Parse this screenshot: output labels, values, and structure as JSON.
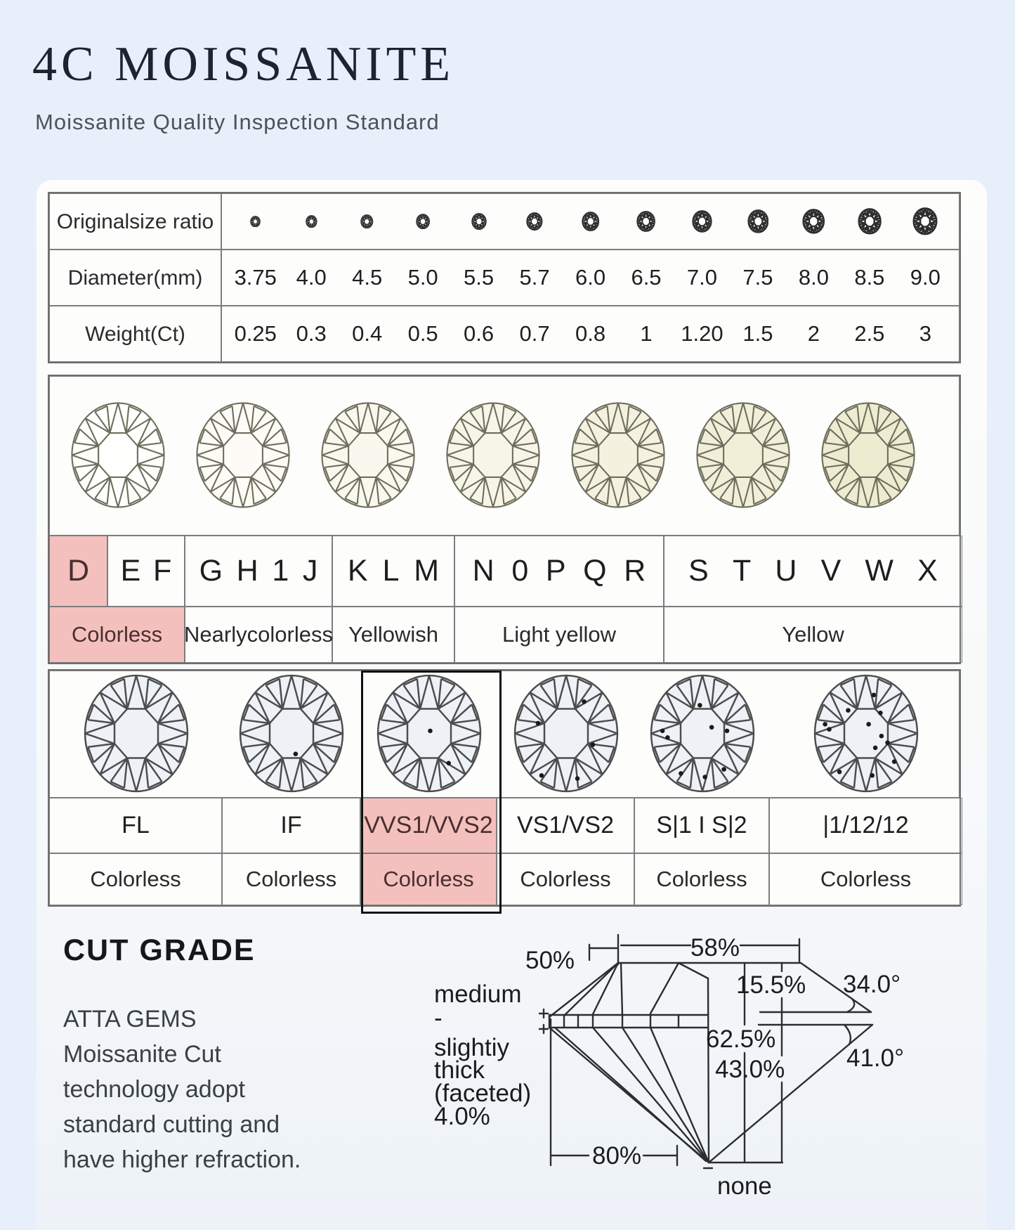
{
  "header": {
    "title": "4C  MOISSANITE",
    "subtitle": "Moissanite Quality Inspection Standard"
  },
  "size_table": {
    "rows": {
      "size_ratio_label": "Original\nsize ratio",
      "diameter_label": "Diameter\n(mm)",
      "weight_label": "Weight\n(Ct)"
    },
    "diameters": [
      "3.75",
      "4.0",
      "4.5",
      "5.0",
      "5.5",
      "5.7",
      "6.0",
      "6.5",
      "7.0",
      "7.5",
      "8.0",
      "8.5",
      "9.0"
    ],
    "weights": [
      "0.25",
      "0.3",
      "0.4",
      "0.5",
      "0.6",
      "0.7",
      "0.8",
      "1",
      "1.20",
      "1.5",
      "2",
      "2.5",
      "3"
    ]
  },
  "color_table": {
    "gem_tints": [
      "#fefefc",
      "#fcfbf6",
      "#f9f8ee",
      "#f7f5e7",
      "#f4f2df",
      "#f1efd8",
      "#eeecd0"
    ],
    "gem_stroke": "#6e6e5e",
    "letter_groups": [
      {
        "letters": [
          "D"
        ],
        "highlight": true
      },
      {
        "letters": [
          "E",
          "F"
        ],
        "highlight": false
      },
      {
        "letters": [
          "G",
          "H",
          "1",
          "J"
        ],
        "highlight": false
      },
      {
        "letters": [
          "K",
          "L",
          "M"
        ],
        "highlight": false
      },
      {
        "letters": [
          "N",
          "0",
          "P",
          "Q",
          "R"
        ],
        "highlight": false
      },
      {
        "letters": [
          "S",
          "T",
          "U",
          "V",
          "W",
          "X"
        ],
        "highlight": false
      }
    ],
    "labels": [
      {
        "text": "Colorless",
        "highlight": true
      },
      {
        "text": "Nearly\ncolorless",
        "highlight": false
      },
      {
        "text": "Yellowish",
        "highlight": false
      },
      {
        "text": "Light yellow",
        "highlight": false
      },
      {
        "text": "Yellow",
        "highlight": false
      }
    ]
  },
  "clarity_table": {
    "gem_fill": "#eef2f7",
    "gem_stroke": "#4d4d4d",
    "grades": [
      "FL",
      "IF",
      "VVS1/VVS2",
      "VS1/VS2",
      "S|1 I S|2",
      "|1/12/12"
    ],
    "descriptions": [
      "Colorless",
      "Colorless",
      "Colorless",
      "Colorless",
      "Colorless",
      "Colorless"
    ],
    "highlight_index": 2,
    "inclusions": [
      [],
      [
        [
          8,
          40
        ]
      ],
      [
        [
          2,
          -5
        ],
        [
          38,
          58
        ]
      ],
      [
        [
          35,
          -62
        ],
        [
          -55,
          -20
        ],
        [
          52,
          22
        ],
        [
          -48,
          82
        ],
        [
          22,
          88
        ]
      ],
      [
        [
          -5,
          -55
        ],
        [
          -78,
          -5
        ],
        [
          -68,
          8
        ],
        [
          18,
          -12
        ],
        [
          48,
          -5
        ],
        [
          -42,
          78
        ],
        [
          5,
          85
        ],
        [
          42,
          70
        ]
      ],
      [
        [
          15,
          -75
        ],
        [
          -35,
          -45
        ],
        [
          5,
          -18
        ],
        [
          -80,
          -18
        ],
        [
          -72,
          -8
        ],
        [
          30,
          5
        ],
        [
          42,
          18
        ],
        [
          18,
          28
        ],
        [
          -52,
          75
        ],
        [
          12,
          82
        ],
        [
          55,
          55
        ],
        [
          28,
          -40
        ]
      ]
    ]
  },
  "cut": {
    "heading": "CUT GRADE",
    "paragraph_lines": [
      "ATTA GEMS",
      "Moissanite Cut",
      "technology adopt",
      "standard cutting and",
      "have higher refraction."
    ],
    "girdle_lines": [
      "medium",
      "-",
      "slightiy",
      "thick",
      "(faceted)",
      "4.0%"
    ],
    "labels": {
      "table_width": "50%",
      "table_width2": "58%",
      "crown_height": "15.5%",
      "crown_angle": "34.0°",
      "total_depth": "62.5%",
      "pavilion_depth": "43.0%",
      "pavilion_angle": "41.0°",
      "lower_girdle": "80%",
      "culet": "none"
    }
  },
  "colors": {
    "highlight_pink": "#f4c0be",
    "page_background": "#e7f0fa",
    "table_border": "#6e6e6e"
  }
}
